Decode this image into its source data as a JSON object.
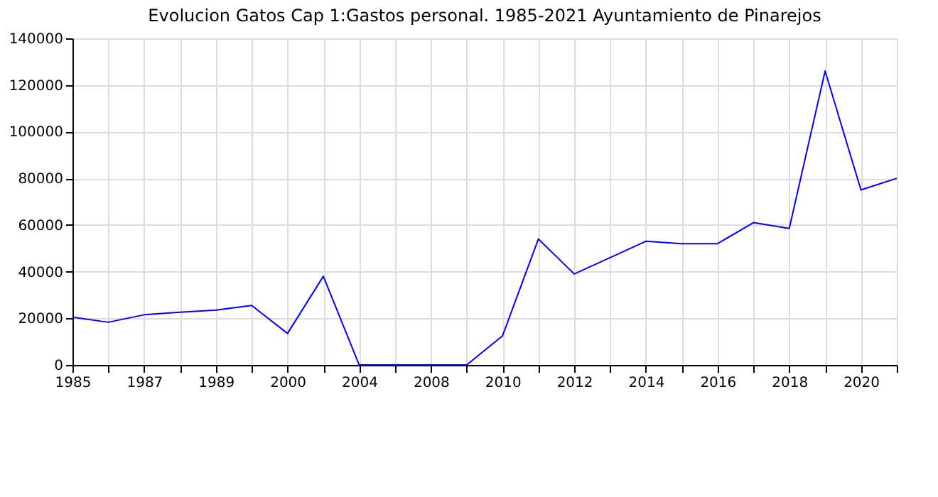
{
  "chart_data": {
    "type": "line",
    "title": "Evolucion Gatos Cap 1:Gastos personal. 1985-2021 Ayuntamiento de Pinarejos",
    "categories": [
      "1985",
      null,
      "1987",
      null,
      "1989",
      null,
      "2000",
      null,
      "2004",
      null,
      "2008",
      null,
      "2010",
      null,
      "2012",
      null,
      "2014",
      null,
      "2016",
      null,
      "2018",
      null,
      "2020",
      null
    ],
    "series": [
      {
        "color": "#0000ff",
        "values": [
          20500,
          18300,
          21500,
          22600,
          23500,
          25500,
          13500,
          38000,
          0,
          0,
          0,
          0,
          12500,
          54000,
          39000,
          46000,
          53000,
          52000,
          52000,
          61000,
          58500,
          126000,
          75000,
          80000
        ]
      }
    ],
    "ylim": [
      0,
      140000
    ],
    "yticks": [
      0,
      20000,
      40000,
      60000,
      80000,
      100000,
      120000,
      140000
    ],
    "grid": true,
    "legend": false,
    "marker": "none",
    "line_style": "solid"
  }
}
